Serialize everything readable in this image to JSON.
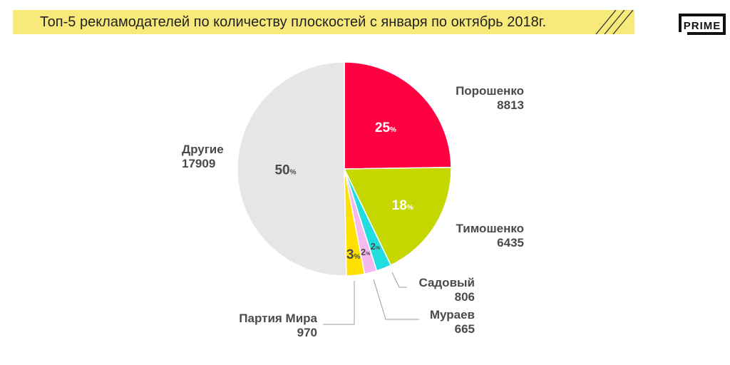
{
  "header": {
    "title": "Топ-5 рекламодателей по количеству плоскостей с января по октябрь 2018г.",
    "logo_text": "PRIME"
  },
  "colors": {
    "title_bg": "#f8ea7a",
    "text": "#4a4a4a"
  },
  "chart_data": {
    "type": "pie",
    "title": "Топ-5 рекламодателей по количеству плоскостей с января по октябрь 2018г.",
    "percent_sign": "%",
    "slices": [
      {
        "name": "Порошенко",
        "value": 8813,
        "percent": "25",
        "color": "#ff0040",
        "pct_color": "#ffffff"
      },
      {
        "name": "Тимошенко",
        "value": 6435,
        "percent": "18",
        "color": "#c6d600",
        "pct_color": "#ffffff"
      },
      {
        "name": "Садовый",
        "value": 806,
        "percent": "2",
        "color": "#22dde0",
        "pct_color": "#4a4a4a"
      },
      {
        "name": "Мураев",
        "value": 665,
        "percent": "2",
        "color": "#f7b8f0",
        "pct_color": "#4a4a4a"
      },
      {
        "name": "Партия Мира",
        "value": 970,
        "percent": "3",
        "color": "#ffe000",
        "pct_color": "#4a4a4a"
      },
      {
        "name": "Другие",
        "value": 17909,
        "percent": "50",
        "color": "#e6e6e6",
        "pct_color": "#4a4a4a"
      }
    ]
  }
}
